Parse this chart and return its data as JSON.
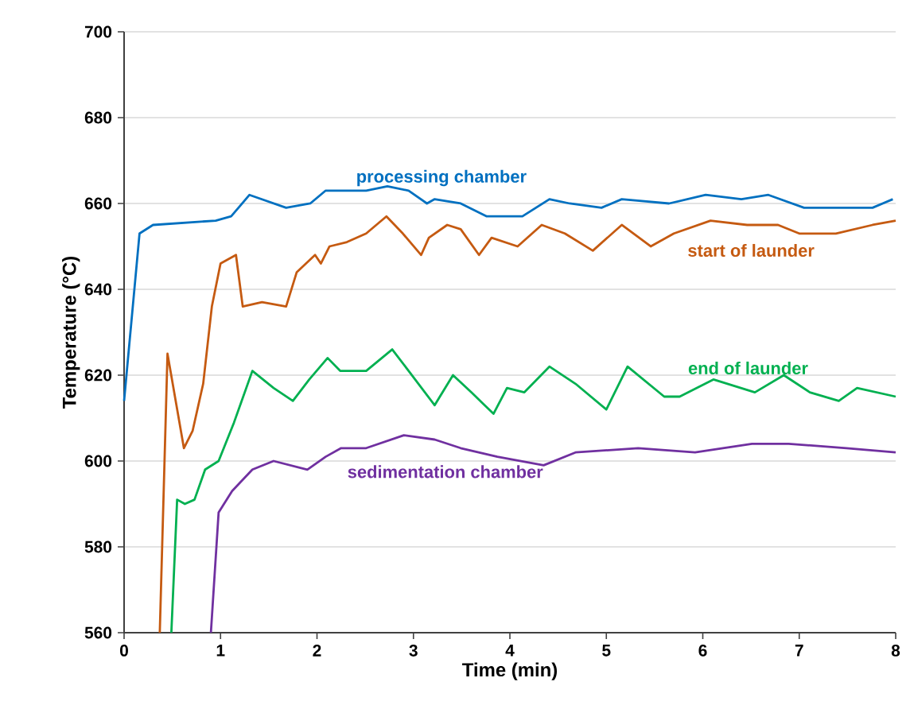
{
  "chart_data": {
    "type": "line",
    "xlabel": "Time (min)",
    "ylabel": "Temperature (°C)",
    "xlim": [
      0,
      8
    ],
    "xticks": [
      0,
      1,
      2,
      3,
      4,
      5,
      6,
      7,
      8
    ],
    "ylim": [
      560,
      700
    ],
    "yticks": [
      560,
      580,
      600,
      620,
      640,
      660,
      680,
      700
    ],
    "grid": "y",
    "legend": false,
    "marker": "none",
    "line_style": "solid",
    "series": [
      {
        "name": "processing chamber",
        "color": "#0070c0",
        "x": [
          0.0,
          0.16,
          0.3,
          0.95,
          1.11,
          1.3,
          1.68,
          1.93,
          2.09,
          2.51,
          2.73,
          2.95,
          3.14,
          3.22,
          3.49,
          3.76,
          4.13,
          4.41,
          4.62,
          4.95,
          5.16,
          5.65,
          6.03,
          6.4,
          6.68,
          7.05,
          7.38,
          7.76,
          7.97
        ],
        "values": [
          614,
          653,
          655,
          656,
          657,
          662,
          659,
          660,
          663,
          663,
          664,
          663,
          660,
          661,
          660,
          657,
          657,
          661,
          660,
          659,
          661,
          660,
          662,
          661,
          662,
          659,
          659,
          659,
          661
        ]
      },
      {
        "name": "start of launder",
        "color": "#c55a11",
        "x": [
          0.37,
          0.45,
          0.62,
          0.71,
          0.82,
          0.91,
          1.0,
          1.16,
          1.23,
          1.43,
          1.68,
          1.79,
          1.98,
          2.04,
          2.13,
          2.31,
          2.51,
          2.72,
          2.89,
          3.08,
          3.16,
          3.35,
          3.49,
          3.68,
          3.81,
          4.08,
          4.33,
          4.57,
          4.86,
          5.16,
          5.46,
          5.7,
          6.08,
          6.46,
          6.78,
          7.0,
          7.38,
          7.76,
          8.0
        ],
        "values": [
          560,
          625,
          603,
          607,
          618,
          636,
          646,
          648,
          636,
          637,
          636,
          644,
          648,
          646,
          650,
          651,
          653,
          657,
          653,
          648,
          652,
          655,
          654,
          648,
          652,
          650,
          655,
          653,
          649,
          655,
          650,
          653,
          656,
          655,
          655,
          653,
          653,
          655,
          656
        ]
      },
      {
        "name": "end of launder",
        "color": "#00b050",
        "x": [
          0.49,
          0.55,
          0.63,
          0.73,
          0.84,
          0.98,
          1.14,
          1.33,
          1.55,
          1.75,
          1.92,
          2.11,
          2.24,
          2.51,
          2.78,
          2.95,
          3.22,
          3.41,
          3.6,
          3.83,
          3.97,
          4.15,
          4.41,
          4.68,
          5.0,
          5.22,
          5.6,
          5.76,
          6.11,
          6.54,
          6.84,
          7.11,
          7.41,
          7.6,
          8.0
        ],
        "values": [
          560,
          591,
          590,
          591,
          598,
          600,
          609,
          621,
          617,
          614,
          619,
          624,
          621,
          621,
          626,
          621,
          613,
          620,
          616,
          611,
          617,
          616,
          622,
          618,
          612,
          622,
          615,
          615,
          619,
          616,
          620,
          616,
          614,
          617,
          615
        ]
      },
      {
        "name": "sedimentation chamber",
        "color": "#7030a0",
        "x": [
          0.9,
          0.98,
          1.12,
          1.33,
          1.55,
          1.9,
          2.09,
          2.25,
          2.51,
          2.9,
          3.22,
          3.49,
          3.87,
          4.35,
          4.68,
          5.33,
          5.92,
          6.51,
          6.89,
          7.49,
          8.0
        ],
        "values": [
          560,
          588,
          593,
          598,
          600,
          598,
          601,
          603,
          603,
          606,
          605,
          603,
          601,
          599,
          602,
          603,
          602,
          604,
          604,
          603,
          602
        ]
      }
    ]
  }
}
